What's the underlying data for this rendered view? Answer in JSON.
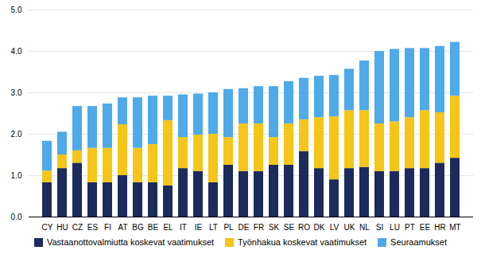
{
  "chart_data": {
    "type": "bar",
    "stacked": true,
    "categories": [
      "CY",
      "HU",
      "CZ",
      "ES",
      "FI",
      "AT",
      "BG",
      "BE",
      "EL",
      "IT",
      "IE",
      "LT",
      "PL",
      "DE",
      "FR",
      "SK",
      "SE",
      "RO",
      "DK",
      "LV",
      "UK",
      "NL",
      "SI",
      "LU",
      "PT",
      "EE",
      "HR",
      "MT"
    ],
    "series": [
      {
        "name": "Vastaanottovalmiutta koskevat vaatimukset",
        "color": "#1c2b5c",
        "values": [
          0.83,
          1.17,
          1.3,
          0.83,
          0.83,
          1.0,
          0.83,
          0.83,
          0.75,
          1.17,
          1.1,
          0.83,
          1.25,
          1.1,
          1.1,
          1.25,
          1.25,
          1.58,
          1.17,
          0.9,
          1.17,
          1.2,
          1.1,
          1.1,
          1.17,
          1.17,
          1.3,
          1.42
        ]
      },
      {
        "name": "Työnhakua koskevat vaatimukset",
        "color": "#f5c518",
        "values": [
          0.28,
          0.33,
          0.3,
          0.83,
          0.83,
          1.23,
          0.83,
          0.92,
          1.58,
          0.75,
          0.88,
          1.17,
          0.67,
          1.15,
          1.15,
          0.67,
          1.0,
          0.77,
          1.23,
          1.52,
          1.4,
          1.37,
          1.15,
          1.2,
          1.23,
          1.4,
          1.22,
          1.5
        ]
      },
      {
        "name": "Seuraamukset",
        "color": "#4eaae8",
        "values": [
          0.72,
          0.55,
          1.07,
          1.01,
          1.07,
          0.65,
          1.22,
          1.17,
          0.59,
          1.03,
          0.99,
          1.0,
          1.16,
          0.85,
          0.9,
          1.23,
          1.02,
          1.0,
          1.0,
          1.0,
          1.0,
          1.2,
          1.75,
          1.75,
          1.67,
          1.5,
          1.6,
          1.3
        ]
      }
    ],
    "ylim": [
      0,
      5
    ],
    "yticks": [
      0,
      1,
      2,
      3,
      4,
      5
    ],
    "grid": true,
    "legend": "bottom"
  }
}
